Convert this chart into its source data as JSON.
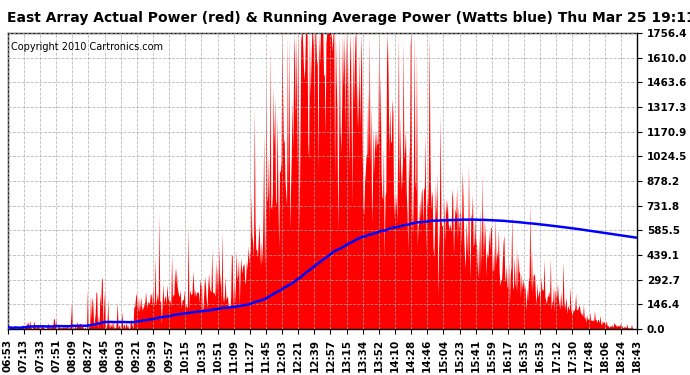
{
  "title": "East Array Actual Power (red) & Running Average Power (Watts blue) Thu Mar 25 19:11",
  "copyright": "Copyright 2010 Cartronics.com",
  "yticks": [
    0.0,
    146.4,
    292.7,
    439.1,
    585.5,
    731.8,
    878.2,
    1024.5,
    1170.9,
    1317.3,
    1463.6,
    1610.0,
    1756.4
  ],
  "ymax": 1756.4,
  "ymin": 0.0,
  "xtick_labels": [
    "06:53",
    "07:13",
    "07:33",
    "07:51",
    "08:09",
    "08:27",
    "08:45",
    "09:03",
    "09:21",
    "09:39",
    "09:57",
    "10:15",
    "10:33",
    "10:51",
    "11:09",
    "11:27",
    "11:45",
    "12:03",
    "12:21",
    "12:39",
    "12:57",
    "13:15",
    "13:34",
    "13:52",
    "14:10",
    "14:28",
    "14:46",
    "15:04",
    "15:23",
    "15:41",
    "15:59",
    "16:17",
    "16:35",
    "16:53",
    "17:12",
    "17:30",
    "17:48",
    "18:06",
    "18:24",
    "18:43"
  ],
  "bg_color": "#ffffff",
  "plot_bg_color": "#ffffff",
  "grid_color": "#aaaaaa",
  "red_color": "#ff0000",
  "blue_color": "#0000ff",
  "title_fontsize": 10,
  "copyright_fontsize": 7,
  "tick_fontsize": 7.5
}
